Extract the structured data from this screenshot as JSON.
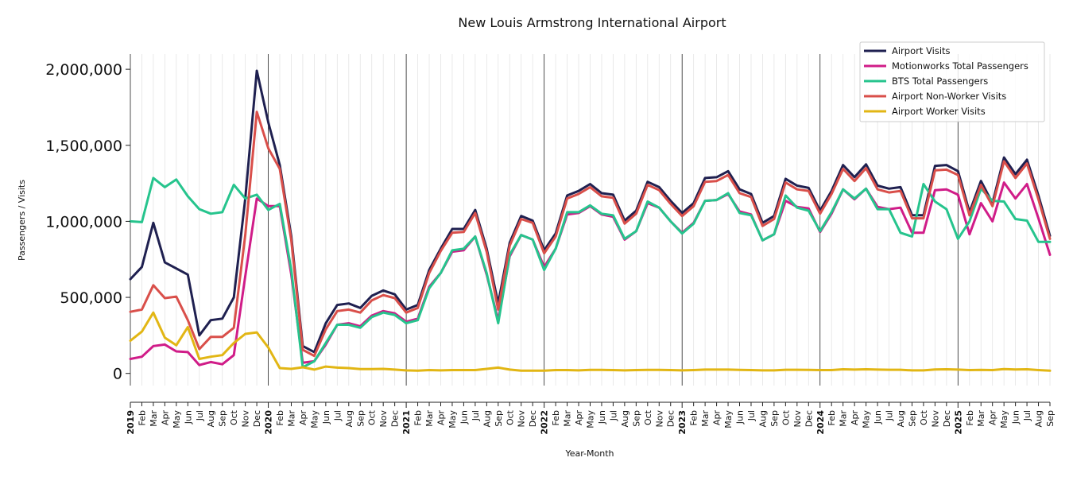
{
  "chart_data": {
    "type": "line",
    "title": "New Louis Armstrong International Airport",
    "xlabel": "Year-Month",
    "ylabel": "Passengers / Visits",
    "ylim": [
      -80000,
      2100000
    ],
    "yticks": [
      0,
      500000,
      1000000,
      1500000,
      2000000
    ],
    "ytick_labels": [
      "0",
      "500,000",
      "1,000,000",
      "1,500,000",
      "2,000,000"
    ],
    "x": [
      "2019",
      "Feb",
      "Mar",
      "Apr",
      "May",
      "Jun",
      "Jul",
      "Aug",
      "Sep",
      "Oct",
      "Nov",
      "Dec",
      "2020",
      "Feb",
      "Mar",
      "Apr",
      "May",
      "Jun",
      "Jul",
      "Aug",
      "Sep",
      "Oct",
      "Nov",
      "Dec",
      "2021",
      "Feb",
      "Mar",
      "Apr",
      "May",
      "Jun",
      "Jul",
      "Aug",
      "Sep",
      "Oct",
      "Nov",
      "Dec",
      "2022",
      "Feb",
      "Mar",
      "Apr",
      "May",
      "Jun",
      "Jul",
      "Aug",
      "Sep",
      "Oct",
      "Nov",
      "Dec",
      "2023",
      "Feb",
      "Mar",
      "Apr",
      "May",
      "Jun",
      "Jul",
      "Aug",
      "Sep",
      "Oct",
      "Nov",
      "Dec",
      "2024",
      "Feb",
      "Mar",
      "Apr",
      "May",
      "Jun",
      "Jul",
      "Aug",
      "Sep",
      "Oct",
      "Nov",
      "Dec",
      "2025",
      "Feb",
      "Mar",
      "Apr",
      "May",
      "Jun",
      "Jul",
      "Aug",
      "Sep"
    ],
    "year_ticks": [
      "2019",
      "2020",
      "2021",
      "2022",
      "2023",
      "2024",
      "2025"
    ],
    "grid": "vertical-monthly",
    "legend": "top-right",
    "series": [
      {
        "name": "Airport Visits",
        "color": "#1f2050",
        "values": [
          620000,
          700000,
          990000,
          730000,
          690000,
          650000,
          250000,
          350000,
          360000,
          500000,
          1150000,
          1990000,
          1650000,
          1370000,
          900000,
          180000,
          140000,
          330000,
          450000,
          460000,
          430000,
          510000,
          545000,
          520000,
          420000,
          450000,
          680000,
          820000,
          950000,
          950000,
          1075000,
          820000,
          460000,
          860000,
          1035000,
          1005000,
          810000,
          920000,
          1170000,
          1200000,
          1245000,
          1185000,
          1175000,
          1005000,
          1070000,
          1260000,
          1225000,
          1135000,
          1055000,
          1120000,
          1285000,
          1290000,
          1330000,
          1210000,
          1180000,
          990000,
          1035000,
          1280000,
          1235000,
          1220000,
          1070000,
          1200000,
          1370000,
          1290000,
          1375000,
          1235000,
          1215000,
          1225000,
          1040000,
          1040000,
          1365000,
          1370000,
          1330000,
          1060000,
          1265000,
          1120000,
          1420000,
          1310000,
          1405000,
          1170000,
          905000
        ]
      },
      {
        "name": "Motionworks Total Passengers",
        "color": "#d01c88",
        "values": [
          95000,
          110000,
          180000,
          190000,
          145000,
          140000,
          55000,
          75000,
          60000,
          120000,
          640000,
          1150000,
          1100000,
          1100000,
          650000,
          70000,
          80000,
          190000,
          320000,
          330000,
          310000,
          380000,
          410000,
          395000,
          340000,
          360000,
          570000,
          660000,
          800000,
          810000,
          900000,
          650000,
          350000,
          770000,
          910000,
          880000,
          700000,
          820000,
          1045000,
          1055000,
          1100000,
          1045000,
          1030000,
          880000,
          935000,
          1120000,
          1090000,
          1000000,
          925000,
          990000,
          1135000,
          1140000,
          1180000,
          1065000,
          1045000,
          875000,
          915000,
          1135000,
          1095000,
          1085000,
          930000,
          1050000,
          1210000,
          1145000,
          1215000,
          1095000,
          1080000,
          1090000,
          925000,
          925000,
          1205000,
          1210000,
          1175000,
          915000,
          1120000,
          1000000,
          1255000,
          1150000,
          1245000,
          1020000,
          780000
        ]
      },
      {
        "name": "BTS Total Passengers",
        "color": "#26c48d",
        "values": [
          1000000,
          995000,
          1285000,
          1225000,
          1275000,
          1165000,
          1080000,
          1050000,
          1060000,
          1240000,
          1150000,
          1175000,
          1075000,
          1115000,
          680000,
          40000,
          80000,
          200000,
          320000,
          320000,
          300000,
          370000,
          400000,
          385000,
          330000,
          350000,
          560000,
          660000,
          810000,
          820000,
          900000,
          660000,
          330000,
          780000,
          910000,
          880000,
          680000,
          820000,
          1060000,
          1060000,
          1105000,
          1050000,
          1040000,
          885000,
          935000,
          1130000,
          1090000,
          1000000,
          920000,
          985000,
          1135000,
          1140000,
          1185000,
          1055000,
          1040000,
          875000,
          915000,
          1170000,
          1090000,
          1070000,
          935000,
          1060000,
          1210000,
          1150000,
          1215000,
          1080000,
          1080000,
          925000,
          900000,
          1245000,
          1130000,
          1080000,
          885000,
          1000000,
          1215000,
          1135000,
          1130000,
          1015000,
          1005000,
          865000,
          865000
        ]
      },
      {
        "name": "Airport Non-Worker Visits",
        "color": "#d94f4a",
        "values": [
          405000,
          420000,
          580000,
          495000,
          505000,
          350000,
          160000,
          240000,
          240000,
          300000,
          910000,
          1720000,
          1480000,
          1345000,
          875000,
          155000,
          115000,
          290000,
          410000,
          420000,
          400000,
          480000,
          515000,
          495000,
          400000,
          430000,
          660000,
          805000,
          925000,
          930000,
          1055000,
          800000,
          420000,
          840000,
          1015000,
          990000,
          790000,
          900000,
          1150000,
          1180000,
          1225000,
          1165000,
          1155000,
          985000,
          1050000,
          1240000,
          1205000,
          1115000,
          1035000,
          1100000,
          1260000,
          1265000,
          1305000,
          1185000,
          1160000,
          970000,
          1015000,
          1255000,
          1210000,
          1200000,
          1050000,
          1180000,
          1345000,
          1265000,
          1350000,
          1210000,
          1190000,
          1200000,
          1020000,
          1020000,
          1335000,
          1340000,
          1305000,
          1040000,
          1240000,
          1100000,
          1395000,
          1285000,
          1380000,
          1145000,
          885000
        ]
      },
      {
        "name": "Airport Worker Visits",
        "color": "#e2b614",
        "values": [
          215000,
          275000,
          400000,
          235000,
          185000,
          305000,
          95000,
          110000,
          120000,
          200000,
          260000,
          270000,
          170000,
          35000,
          30000,
          40000,
          25000,
          45000,
          38000,
          35000,
          28000,
          28000,
          30000,
          25000,
          20000,
          18000,
          22000,
          20000,
          22000,
          22000,
          22000,
          30000,
          38000,
          25000,
          18000,
          18000,
          18000,
          22000,
          22000,
          20000,
          23000,
          23000,
          22000,
          20000,
          22000,
          23000,
          23000,
          22000,
          20000,
          22000,
          25000,
          25000,
          25000,
          23000,
          22000,
          20000,
          20000,
          24000,
          24000,
          23000,
          22000,
          22000,
          27000,
          25000,
          27000,
          25000,
          24000,
          24000,
          20000,
          20000,
          26000,
          27000,
          25000,
          22000,
          23000,
          22000,
          28000,
          26000,
          27000,
          22000,
          18000
        ]
      }
    ]
  }
}
